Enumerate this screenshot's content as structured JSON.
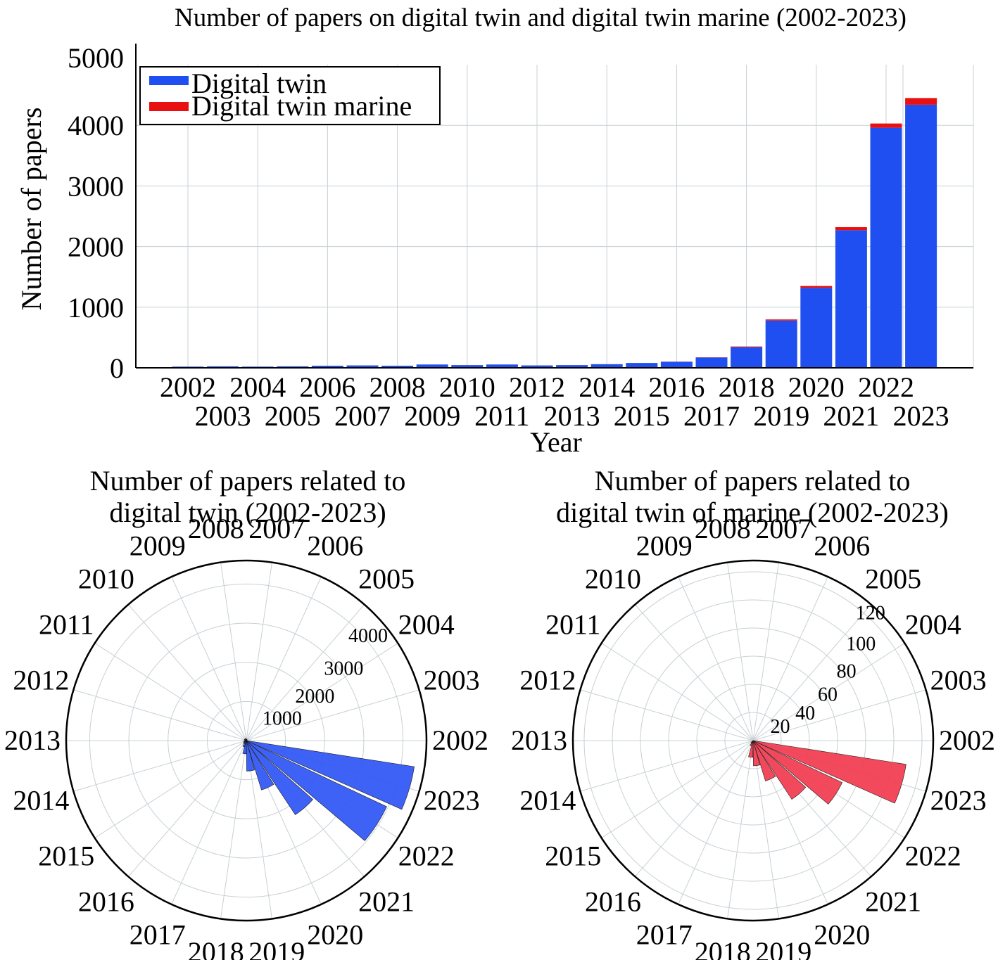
{
  "colors": {
    "digital_twin": "#1f4ff0",
    "digital_twin_marine": "#e81010",
    "polar_twin": "#2f55f5",
    "polar_marine": "#f23a4e",
    "grid": "#c8d0d4"
  },
  "chart_data": [
    {
      "type": "bar",
      "stacked": true,
      "title": "Number of papers on digital twin and digital twin marine (2002-2023)",
      "xlabel": "Year",
      "ylabel": "Number of papers",
      "ylim": [
        0,
        5000
      ],
      "yticks": [
        0,
        1000,
        2000,
        3000,
        4000,
        5000
      ],
      "grid": true,
      "legend_position": "top-left",
      "categories": [
        "2002",
        "2003",
        "2004",
        "2005",
        "2006",
        "2007",
        "2008",
        "2009",
        "2010",
        "2011",
        "2012",
        "2013",
        "2014",
        "2015",
        "2016",
        "2017",
        "2018",
        "2019",
        "2020",
        "2021",
        "2022",
        "2023"
      ],
      "series": [
        {
          "name": "Digital twin",
          "values": [
            20,
            25,
            20,
            25,
            35,
            40,
            35,
            55,
            45,
            55,
            40,
            45,
            60,
            80,
            100,
            170,
            340,
            780,
            1320,
            2270,
            3960,
            4340
          ]
        },
        {
          "name": "Digital twin marine",
          "values": [
            0,
            0,
            0,
            0,
            0,
            0,
            0,
            0,
            0,
            0,
            0,
            0,
            0,
            0,
            2,
            4,
            12,
            18,
            30,
            50,
            70,
            110
          ]
        }
      ]
    },
    {
      "type": "polar-bar",
      "title_lines": [
        "Number of papers related to",
        "digital twin (2002-2023)"
      ],
      "radial_ticks": [
        "1000",
        "2000",
        "3000",
        "4000"
      ],
      "rmax": 4600,
      "categories": [
        "2002",
        "2003",
        "2004",
        "2005",
        "2006",
        "2007",
        "2008",
        "2009",
        "2010",
        "2011",
        "2012",
        "2013",
        "2014",
        "2015",
        "2016",
        "2017",
        "2018",
        "2019",
        "2020",
        "2021",
        "2022",
        "2023"
      ],
      "values": [
        20,
        25,
        20,
        25,
        35,
        40,
        35,
        55,
        45,
        55,
        40,
        45,
        60,
        80,
        100,
        170,
        340,
        780,
        1320,
        2270,
        3960,
        4340
      ]
    },
    {
      "type": "polar-bar",
      "title_lines": [
        "Number of papers related to",
        "digital twin of marine (2002-2023)"
      ],
      "radial_ticks": [
        "20",
        "40",
        "60",
        "80",
        "100",
        "120"
      ],
      "rmax": 128,
      "categories": [
        "2002",
        "2003",
        "2004",
        "2005",
        "2006",
        "2007",
        "2008",
        "2009",
        "2010",
        "2011",
        "2012",
        "2013",
        "2014",
        "2015",
        "2016",
        "2017",
        "2018",
        "2019",
        "2020",
        "2021",
        "2022",
        "2023"
      ],
      "values": [
        0,
        0,
        0,
        0,
        0,
        0,
        0,
        0,
        0,
        0,
        0,
        0,
        0,
        0,
        2,
        4,
        12,
        18,
        30,
        50,
        70,
        110
      ]
    }
  ]
}
